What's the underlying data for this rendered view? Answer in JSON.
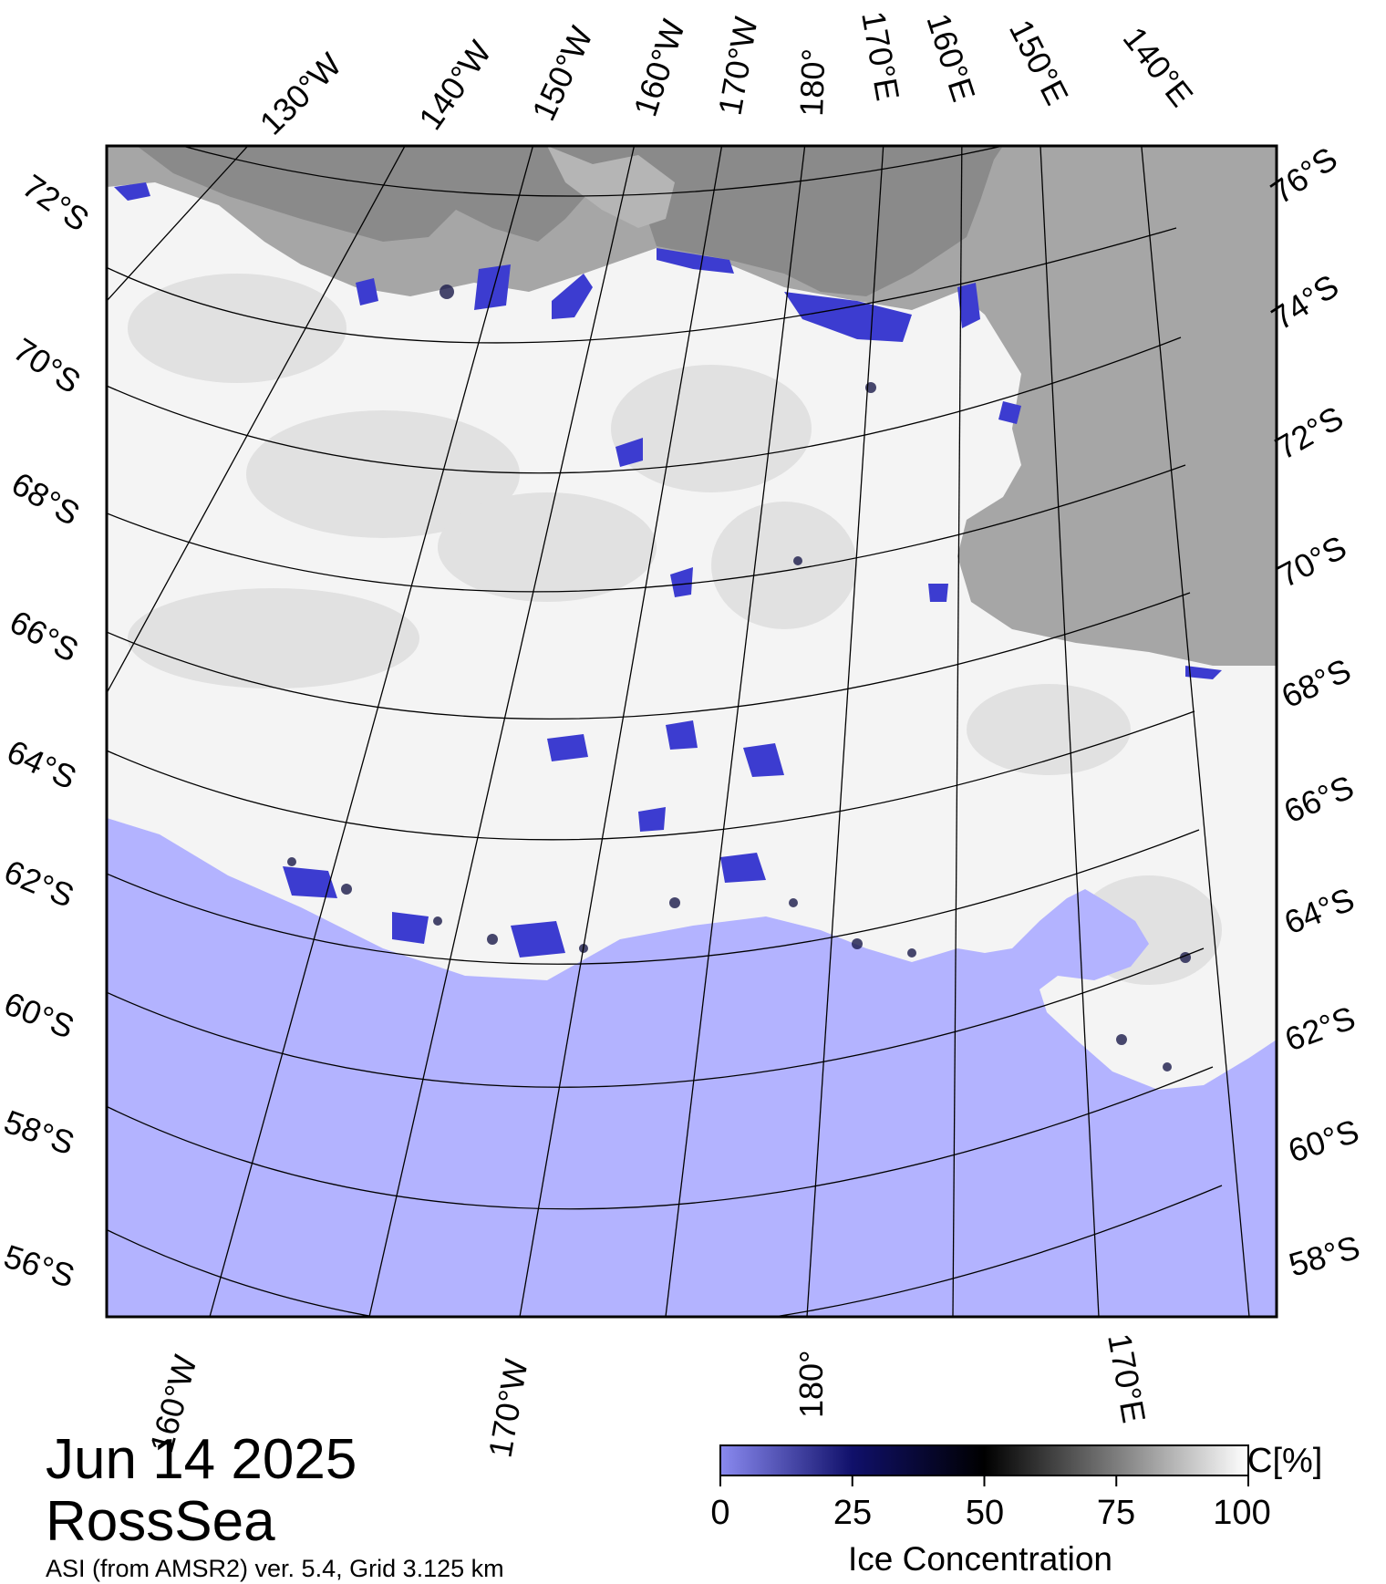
{
  "map": {
    "date": "Jun 14 2025",
    "region": "RossSea",
    "source": "ASI (from AMSR2) ver. 5.4,  Grid 3.125 km",
    "top_longitude_labels": [
      "130°W",
      "140°W",
      "150°W",
      "160°W",
      "170°W",
      "180°",
      "170°E",
      "160°E",
      "150°E",
      "140°E"
    ],
    "bottom_longitude_labels": [
      "160°W",
      "170°W",
      "180°",
      "170°E"
    ],
    "left_latitude_labels": [
      "72°S",
      "70°S",
      "68°S",
      "66°S",
      "64°S",
      "62°S",
      "60°S",
      "58°S",
      "56°S"
    ],
    "right_latitude_labels": [
      "76°S",
      "74°S",
      "72°S",
      "70°S",
      "68°S",
      "66°S",
      "64°S",
      "62°S",
      "60°S",
      "58°S"
    ],
    "colors": {
      "open_water": "#b3b3ff",
      "land": "#a6a6a6",
      "ice_shelf": "#8a8a8a",
      "ice_full": "#ffffff",
      "ice_low": "#1a1a8c"
    }
  },
  "colorbar": {
    "title": "Ice Concentration",
    "unit": "C[%]",
    "ticks": [
      "0",
      "25",
      "50",
      "75",
      "100"
    ]
  }
}
